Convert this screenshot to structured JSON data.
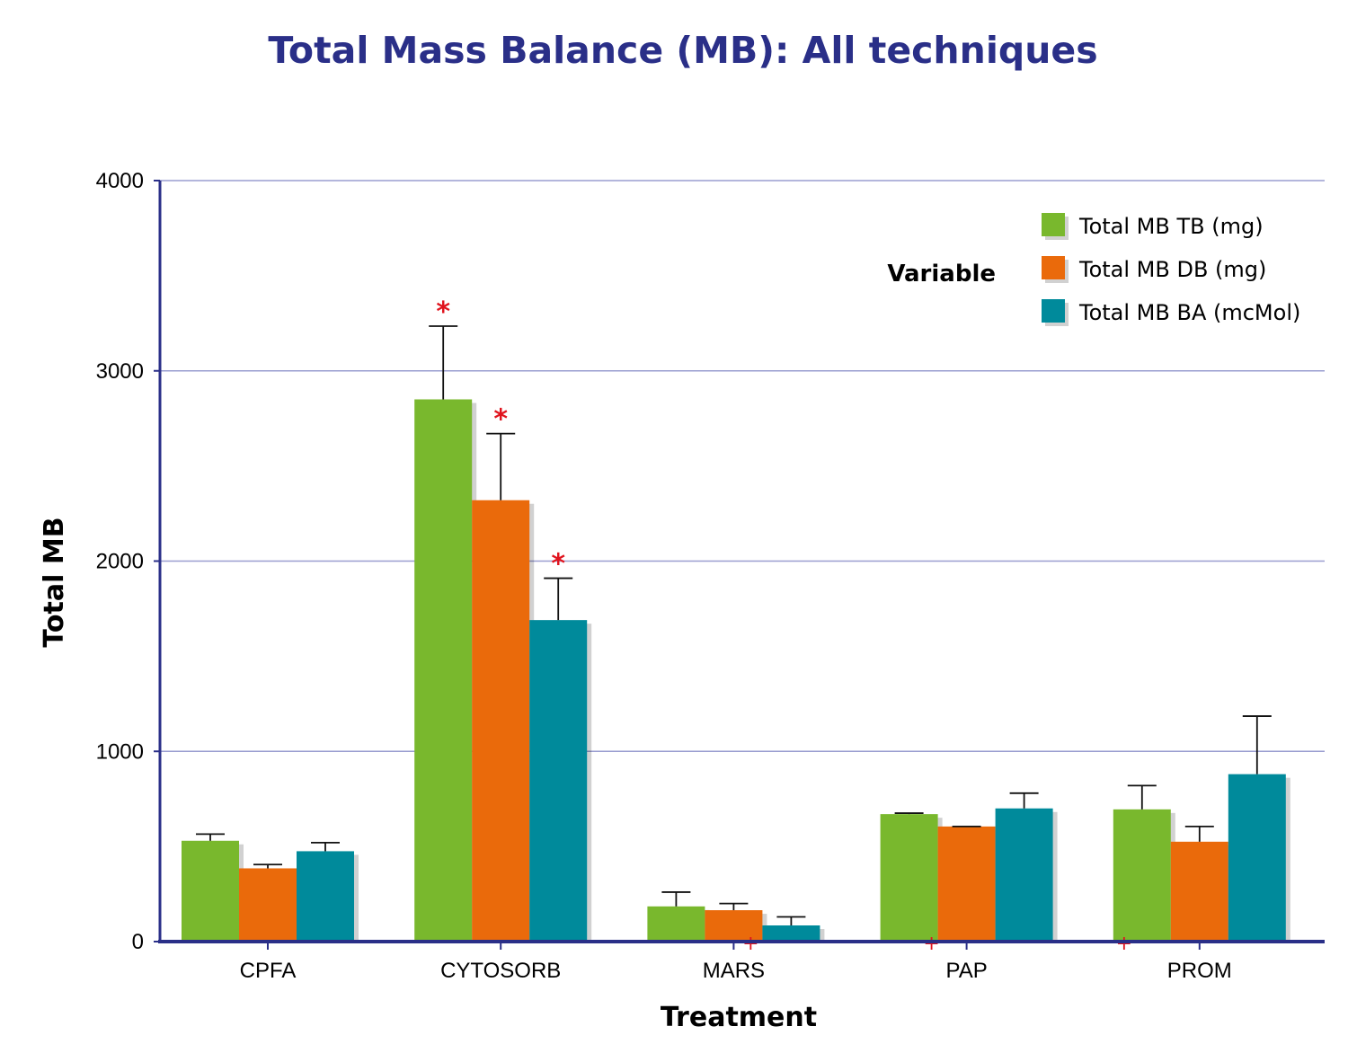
{
  "chart_data": {
    "type": "bar",
    "title": "Total Mass Balance (MB): All techniques",
    "xlabel": "Treatment",
    "ylabel": "Total MB",
    "ylim": [
      0,
      4000
    ],
    "yticks": [
      0,
      1000,
      2000,
      3000,
      4000
    ],
    "grid": true,
    "legend": {
      "title": "Variable",
      "position": "top-right"
    },
    "categories": [
      "CPFA",
      "CYTOSORB",
      "MARS",
      "PAP",
      "PROM"
    ],
    "series": [
      {
        "name": "Total MB TB (mg)",
        "color": "#79b82d",
        "values": [
          530,
          2850,
          185,
          670,
          695
        ],
        "error_upper": [
          565,
          3235,
          260,
          675,
          820
        ],
        "significant": [
          false,
          true,
          false,
          false,
          false
        ]
      },
      {
        "name": "Total MB DB (mg)",
        "color": "#ea6a0b",
        "values": [
          385,
          2320,
          165,
          605,
          525
        ],
        "error_upper": [
          405,
          2670,
          200,
          605,
          605
        ],
        "significant": [
          false,
          true,
          false,
          false,
          false
        ]
      },
      {
        "name": "Total MB BA (mcMol)",
        "color": "#008a9b",
        "values": [
          475,
          1690,
          85,
          700,
          880
        ],
        "error_upper": [
          520,
          1910,
          130,
          780,
          1185
        ],
        "significant": [
          false,
          true,
          false,
          false,
          false
        ]
      }
    ],
    "significance_marker": "*",
    "secondary_marker": "+",
    "secondary_markers": [
      {
        "category": "MARS"
      },
      {
        "category": "PAP"
      },
      {
        "category": "PROM"
      }
    ],
    "colors": {
      "title": "#2a2f88",
      "axis": "#2a2f88",
      "grid": "#9a9ed0",
      "marker": "#e0141e"
    }
  }
}
